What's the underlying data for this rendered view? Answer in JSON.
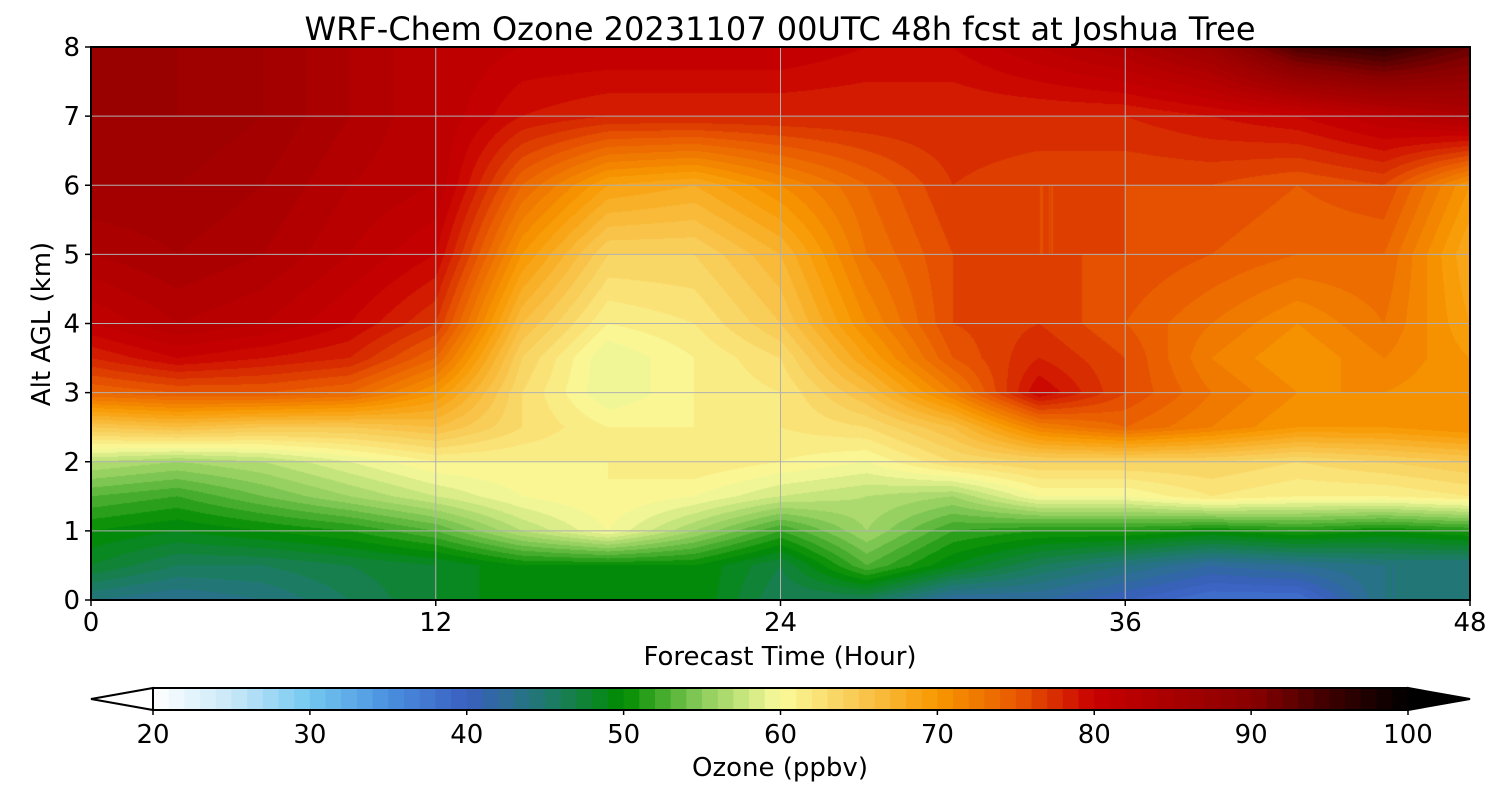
{
  "chart_data": {
    "type": "heatmap",
    "title": "WRF-Chem Ozone  20231107 00UTC 48h fcst at Joshua Tree",
    "xlabel": "Forecast Time (Hour)",
    "ylabel": "Alt AGL (km)",
    "xlim": [
      0,
      48
    ],
    "ylim": [
      0,
      8
    ],
    "xticks": [
      0,
      12,
      24,
      36,
      48
    ],
    "yticks": [
      0,
      1,
      2,
      3,
      4,
      5,
      6,
      7,
      8
    ],
    "grid": true,
    "hours": [
      0,
      3,
      6,
      9,
      12,
      15,
      18,
      21,
      24,
      27,
      30,
      33,
      36,
      39,
      42,
      45,
      48
    ],
    "altitudes_km": [
      0,
      0.5,
      1,
      1.5,
      2,
      2.5,
      3,
      3.5,
      4,
      5,
      6,
      7,
      8
    ],
    "values": [
      [
        44,
        43,
        44,
        46,
        48,
        50,
        49,
        50,
        46,
        46,
        42,
        42,
        40,
        38,
        38,
        44,
        44
      ],
      [
        48,
        46,
        46,
        47,
        48,
        50,
        50,
        50,
        47,
        53,
        49,
        46,
        44,
        42,
        43,
        44,
        44
      ],
      [
        50,
        49,
        50,
        51,
        53,
        57,
        60,
        56,
        52,
        56,
        52,
        51,
        51,
        50,
        51,
        50,
        51
      ],
      [
        53,
        52,
        54,
        56,
        58,
        60,
        61,
        60,
        58,
        57,
        56,
        60,
        60,
        62,
        61,
        61,
        62
      ],
      [
        57,
        56,
        57,
        59,
        61,
        61,
        61,
        62,
        61,
        60,
        63,
        64,
        64,
        64,
        63,
        64,
        65
      ],
      [
        65,
        66,
        65,
        65,
        66,
        63,
        61,
        61,
        62,
        63,
        66,
        72,
        74,
        72,
        70,
        70,
        71
      ],
      [
        74,
        75,
        75,
        74,
        70,
        63,
        59,
        61,
        62,
        66,
        72,
        80,
        76,
        73,
        71,
        71,
        70
      ],
      [
        78,
        80,
        79,
        78,
        74,
        64,
        59,
        61,
        63,
        69,
        75,
        78,
        76,
        72,
        70,
        72,
        70
      ],
      [
        81,
        83,
        82,
        80,
        77,
        66,
        61,
        62,
        65,
        71,
        76,
        77,
        75,
        73,
        71,
        73,
        69
      ],
      [
        84,
        85,
        84,
        82,
        80,
        70,
        64,
        64,
        67,
        73,
        76,
        76,
        76,
        75,
        74,
        74,
        68
      ],
      [
        86,
        86,
        85,
        83,
        82,
        74,
        69,
        68,
        71,
        74,
        77,
        76,
        76,
        76,
        75,
        76,
        70
      ],
      [
        87,
        87,
        86,
        84,
        82,
        79,
        78,
        78,
        78,
        78,
        78,
        78,
        78,
        79,
        80,
        82,
        84
      ],
      [
        87,
        87,
        86,
        84,
        82,
        81,
        81,
        81,
        81,
        80,
        80,
        82,
        84,
        87,
        94,
        96,
        92
      ]
    ],
    "colorbar": {
      "label": "Ozone  (ppbv)",
      "min": 20,
      "max": 100,
      "ticks": [
        20,
        30,
        40,
        50,
        60,
        70,
        80,
        90,
        100
      ],
      "extend": "both",
      "stops": [
        [
          20,
          "#ffffff"
        ],
        [
          25,
          "#c8e8f8"
        ],
        [
          30,
          "#74c8f0"
        ],
        [
          35,
          "#4a90e0"
        ],
        [
          40,
          "#3a5fc0"
        ],
        [
          45,
          "#1f7a6e"
        ],
        [
          50,
          "#008c00"
        ],
        [
          55,
          "#8ccc5c"
        ],
        [
          60,
          "#fbfb9c"
        ],
        [
          65,
          "#f8c850"
        ],
        [
          70,
          "#f89800"
        ],
        [
          75,
          "#e85a00"
        ],
        [
          80,
          "#c80000"
        ],
        [
          85,
          "#a80000"
        ],
        [
          90,
          "#8a0000"
        ],
        [
          95,
          "#3c0000"
        ],
        [
          100,
          "#000000"
        ]
      ]
    }
  }
}
